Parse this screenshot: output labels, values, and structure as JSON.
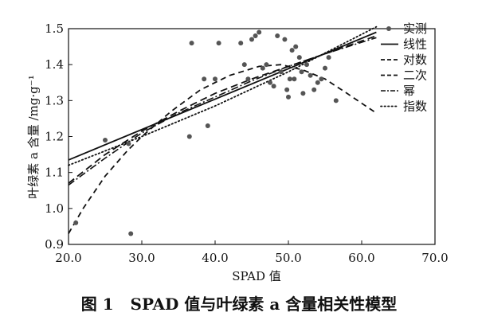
{
  "caption": {
    "figure_number": "图 1",
    "title": "SPAD 值与叶绿素 a 含量相关性模型"
  },
  "chart_data": {
    "type": "scatter",
    "xlabel": "SPAD 值",
    "ylabel": "叶绿素 a 含量 /mg·g⁻¹",
    "xlim": [
      20,
      70
    ],
    "ylim": [
      0.9,
      1.5
    ],
    "xticks": [
      "20.0",
      "30.0",
      "40.0",
      "50.0",
      "60.0",
      "70.0"
    ],
    "yticks": [
      "0.9",
      "1.0",
      "1.1",
      "1.2",
      "1.3",
      "1.4",
      "1.5"
    ],
    "grid": false,
    "legend_position": "top-right",
    "observed": {
      "name": "实测",
      "color": "#555555",
      "points": [
        [
          21.0,
          0.96
        ],
        [
          25.0,
          1.19
        ],
        [
          28.5,
          0.93
        ],
        [
          28.2,
          1.18
        ],
        [
          36.8,
          1.46
        ],
        [
          36.5,
          1.2
        ],
        [
          38.5,
          1.36
        ],
        [
          39.0,
          1.23
        ],
        [
          40.0,
          1.36
        ],
        [
          40.5,
          1.46
        ],
        [
          43.5,
          1.46
        ],
        [
          44.0,
          1.4
        ],
        [
          45.5,
          1.48
        ],
        [
          45.0,
          1.47
        ],
        [
          46.0,
          1.49
        ],
        [
          44.5,
          1.36
        ],
        [
          48.5,
          1.48
        ],
        [
          49.5,
          1.47
        ],
        [
          50.5,
          1.44
        ],
        [
          51.0,
          1.45
        ],
        [
          47.5,
          1.35
        ],
        [
          48.0,
          1.34
        ],
        [
          49.0,
          1.38
        ],
        [
          50.0,
          1.31
        ],
        [
          50.2,
          1.36
        ],
        [
          51.5,
          1.42
        ],
        [
          52.0,
          1.32
        ],
        [
          53.0,
          1.37
        ],
        [
          53.5,
          1.33
        ],
        [
          54.0,
          1.35
        ],
        [
          54.5,
          1.36
        ],
        [
          55.0,
          1.39
        ],
        [
          55.5,
          1.42
        ],
        [
          56.5,
          1.3
        ],
        [
          52.5,
          1.4
        ],
        [
          51.8,
          1.38
        ],
        [
          50.8,
          1.36
        ],
        [
          47.0,
          1.4
        ],
        [
          46.5,
          1.39
        ],
        [
          49.8,
          1.33
        ]
      ]
    },
    "series": [
      {
        "name": "线性",
        "style": "solid",
        "x": [
          20,
          62
        ],
        "y": [
          1.135,
          1.49
        ]
      },
      {
        "name": "对数",
        "style": "dash",
        "x": [
          20,
          25,
          30,
          35,
          40,
          45,
          50,
          55,
          62
        ],
        "y": [
          1.07,
          1.15,
          1.215,
          1.27,
          1.32,
          1.36,
          1.395,
          1.43,
          1.48
        ]
      },
      {
        "name": "二次",
        "style": "longdash",
        "x": [
          20,
          22,
          25,
          28,
          30,
          34,
          38,
          42,
          46,
          49,
          52,
          55,
          58,
          62
        ],
        "y": [
          0.93,
          1.0,
          1.09,
          1.16,
          1.2,
          1.27,
          1.33,
          1.37,
          1.395,
          1.4,
          1.385,
          1.36,
          1.32,
          1.265
        ]
      },
      {
        "name": "幂",
        "style": "dashdot",
        "x": [
          20,
          25,
          30,
          35,
          40,
          45,
          50,
          55,
          62
        ],
        "y": [
          1.065,
          1.14,
          1.21,
          1.265,
          1.31,
          1.355,
          1.395,
          1.43,
          1.475
        ]
      },
      {
        "name": "指数",
        "style": "dotted",
        "x": [
          20,
          30,
          40,
          50,
          62
        ],
        "y": [
          1.12,
          1.2,
          1.285,
          1.38,
          1.505
        ]
      }
    ]
  }
}
